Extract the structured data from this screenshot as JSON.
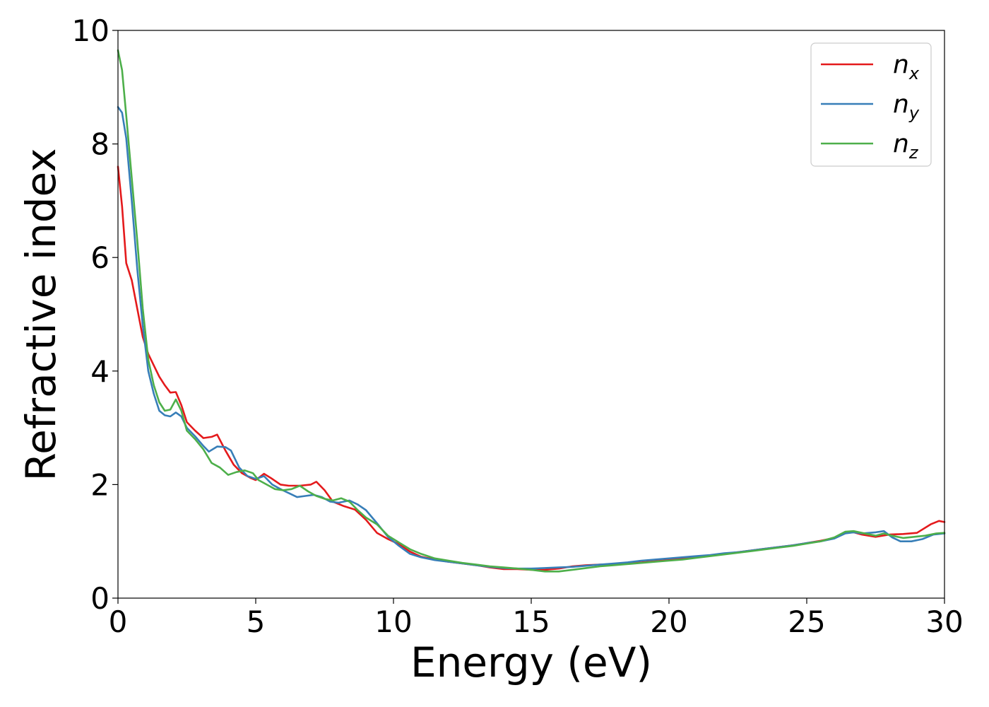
{
  "chart_data": {
    "type": "line",
    "xlabel": "Energy (eV)",
    "ylabel": "Refractive index",
    "xlim": [
      0,
      30
    ],
    "ylim": [
      0,
      10
    ],
    "xticks": [
      "0",
      "5",
      "10",
      "15",
      "20",
      "25",
      "30"
    ],
    "yticks": [
      "0",
      "2",
      "4",
      "6",
      "8",
      "10"
    ],
    "grid": false,
    "legend_position": "top-right",
    "series": [
      {
        "name": "n_x",
        "label_main": "n",
        "label_sub": "x",
        "color": "#e41a1c",
        "points": [
          [
            0,
            7.6
          ],
          [
            0.15,
            6.9
          ],
          [
            0.3,
            5.9
          ],
          [
            0.5,
            5.6
          ],
          [
            0.7,
            5.1
          ],
          [
            0.9,
            4.6
          ],
          [
            1.1,
            4.3
          ],
          [
            1.3,
            4.1
          ],
          [
            1.5,
            3.9
          ],
          [
            1.7,
            3.75
          ],
          [
            1.9,
            3.62
          ],
          [
            2.1,
            3.63
          ],
          [
            2.3,
            3.4
          ],
          [
            2.5,
            3.1
          ],
          [
            2.8,
            2.95
          ],
          [
            3.1,
            2.82
          ],
          [
            3.4,
            2.84
          ],
          [
            3.6,
            2.88
          ],
          [
            3.9,
            2.6
          ],
          [
            4.2,
            2.35
          ],
          [
            4.5,
            2.2
          ],
          [
            4.8,
            2.12
          ],
          [
            5.0,
            2.08
          ],
          [
            5.3,
            2.19
          ],
          [
            5.6,
            2.1
          ],
          [
            5.9,
            2.0
          ],
          [
            6.2,
            1.98
          ],
          [
            6.6,
            1.98
          ],
          [
            7.0,
            2.0
          ],
          [
            7.2,
            2.05
          ],
          [
            7.5,
            1.9
          ],
          [
            7.8,
            1.7
          ],
          [
            8.2,
            1.62
          ],
          [
            8.6,
            1.56
          ],
          [
            9.0,
            1.38
          ],
          [
            9.4,
            1.15
          ],
          [
            9.8,
            1.04
          ],
          [
            10.2,
            0.95
          ],
          [
            10.6,
            0.82
          ],
          [
            11.0,
            0.73
          ],
          [
            11.5,
            0.68
          ],
          [
            12.0,
            0.64
          ],
          [
            12.5,
            0.61
          ],
          [
            13.0,
            0.58
          ],
          [
            13.5,
            0.54
          ],
          [
            14.0,
            0.51
          ],
          [
            14.5,
            0.51
          ],
          [
            15.0,
            0.5
          ],
          [
            15.5,
            0.5
          ],
          [
            16.0,
            0.52
          ],
          [
            16.5,
            0.56
          ],
          [
            17.0,
            0.58
          ],
          [
            17.5,
            0.59
          ],
          [
            18.0,
            0.6
          ],
          [
            18.5,
            0.62
          ],
          [
            19.0,
            0.63
          ],
          [
            19.5,
            0.65
          ],
          [
            20.0,
            0.67
          ],
          [
            20.5,
            0.7
          ],
          [
            21.0,
            0.72
          ],
          [
            21.5,
            0.75
          ],
          [
            22.0,
            0.78
          ],
          [
            22.5,
            0.81
          ],
          [
            23.0,
            0.84
          ],
          [
            23.5,
            0.87
          ],
          [
            24.0,
            0.9
          ],
          [
            24.5,
            0.93
          ],
          [
            25.0,
            0.97
          ],
          [
            25.5,
            1.01
          ],
          [
            26.0,
            1.06
          ],
          [
            26.4,
            1.15
          ],
          [
            26.7,
            1.16
          ],
          [
            27.0,
            1.12
          ],
          [
            27.5,
            1.08
          ],
          [
            28.0,
            1.12
          ],
          [
            28.5,
            1.13
          ],
          [
            29.0,
            1.15
          ],
          [
            29.5,
            1.3
          ],
          [
            29.8,
            1.36
          ],
          [
            30.0,
            1.34
          ]
        ]
      },
      {
        "name": "n_y",
        "label_main": "n",
        "label_sub": "y",
        "color": "#377eb8",
        "points": [
          [
            0,
            8.65
          ],
          [
            0.15,
            8.55
          ],
          [
            0.3,
            8.1
          ],
          [
            0.5,
            7.0
          ],
          [
            0.7,
            5.8
          ],
          [
            0.9,
            4.8
          ],
          [
            1.1,
            4.0
          ],
          [
            1.3,
            3.6
          ],
          [
            1.5,
            3.3
          ],
          [
            1.7,
            3.22
          ],
          [
            1.9,
            3.2
          ],
          [
            2.1,
            3.27
          ],
          [
            2.3,
            3.2
          ],
          [
            2.5,
            3.0
          ],
          [
            2.8,
            2.85
          ],
          [
            3.1,
            2.68
          ],
          [
            3.3,
            2.58
          ],
          [
            3.6,
            2.67
          ],
          [
            3.9,
            2.66
          ],
          [
            4.1,
            2.6
          ],
          [
            4.4,
            2.3
          ],
          [
            4.7,
            2.15
          ],
          [
            5.0,
            2.1
          ],
          [
            5.3,
            2.15
          ],
          [
            5.6,
            2.0
          ],
          [
            5.9,
            1.92
          ],
          [
            6.2,
            1.85
          ],
          [
            6.5,
            1.78
          ],
          [
            6.8,
            1.8
          ],
          [
            7.1,
            1.82
          ],
          [
            7.4,
            1.78
          ],
          [
            7.7,
            1.7
          ],
          [
            8.0,
            1.68
          ],
          [
            8.4,
            1.72
          ],
          [
            8.7,
            1.65
          ],
          [
            9.0,
            1.55
          ],
          [
            9.4,
            1.32
          ],
          [
            9.8,
            1.08
          ],
          [
            10.2,
            0.92
          ],
          [
            10.6,
            0.78
          ],
          [
            11.0,
            0.72
          ],
          [
            11.5,
            0.67
          ],
          [
            12.0,
            0.64
          ],
          [
            12.5,
            0.61
          ],
          [
            13.0,
            0.58
          ],
          [
            13.5,
            0.55
          ],
          [
            14.0,
            0.53
          ],
          [
            14.5,
            0.52
          ],
          [
            15.0,
            0.52
          ],
          [
            15.5,
            0.53
          ],
          [
            16.0,
            0.54
          ],
          [
            16.5,
            0.55
          ],
          [
            17.0,
            0.57
          ],
          [
            17.5,
            0.59
          ],
          [
            18.0,
            0.61
          ],
          [
            18.5,
            0.63
          ],
          [
            19.0,
            0.66
          ],
          [
            19.5,
            0.68
          ],
          [
            20.0,
            0.7
          ],
          [
            20.5,
            0.72
          ],
          [
            21.0,
            0.74
          ],
          [
            21.5,
            0.76
          ],
          [
            22.0,
            0.79
          ],
          [
            22.5,
            0.81
          ],
          [
            23.0,
            0.84
          ],
          [
            23.5,
            0.87
          ],
          [
            24.0,
            0.9
          ],
          [
            24.5,
            0.93
          ],
          [
            25.0,
            0.97
          ],
          [
            25.5,
            1.0
          ],
          [
            26.0,
            1.05
          ],
          [
            26.4,
            1.14
          ],
          [
            26.7,
            1.16
          ],
          [
            27.0,
            1.14
          ],
          [
            27.5,
            1.16
          ],
          [
            27.8,
            1.18
          ],
          [
            28.1,
            1.07
          ],
          [
            28.4,
            1.0
          ],
          [
            28.8,
            1.0
          ],
          [
            29.2,
            1.04
          ],
          [
            29.6,
            1.12
          ],
          [
            30.0,
            1.14
          ]
        ]
      },
      {
        "name": "n_z",
        "label_main": "n",
        "label_sub": "z",
        "color": "#4daf4a",
        "points": [
          [
            0,
            9.65
          ],
          [
            0.15,
            9.3
          ],
          [
            0.3,
            8.5
          ],
          [
            0.5,
            7.4
          ],
          [
            0.7,
            6.3
          ],
          [
            0.9,
            5.1
          ],
          [
            1.1,
            4.2
          ],
          [
            1.3,
            3.75
          ],
          [
            1.5,
            3.45
          ],
          [
            1.7,
            3.3
          ],
          [
            1.9,
            3.32
          ],
          [
            2.1,
            3.5
          ],
          [
            2.3,
            3.3
          ],
          [
            2.5,
            2.95
          ],
          [
            2.8,
            2.8
          ],
          [
            3.1,
            2.62
          ],
          [
            3.4,
            2.38
          ],
          [
            3.7,
            2.3
          ],
          [
            4.0,
            2.17
          ],
          [
            4.3,
            2.22
          ],
          [
            4.6,
            2.25
          ],
          [
            4.9,
            2.2
          ],
          [
            5.1,
            2.08
          ],
          [
            5.4,
            2.0
          ],
          [
            5.7,
            1.92
          ],
          [
            6.0,
            1.9
          ],
          [
            6.3,
            1.92
          ],
          [
            6.6,
            1.98
          ],
          [
            6.9,
            1.88
          ],
          [
            7.2,
            1.8
          ],
          [
            7.5,
            1.75
          ],
          [
            7.8,
            1.72
          ],
          [
            8.1,
            1.76
          ],
          [
            8.4,
            1.7
          ],
          [
            8.7,
            1.55
          ],
          [
            9.0,
            1.42
          ],
          [
            9.4,
            1.3
          ],
          [
            9.8,
            1.1
          ],
          [
            10.2,
            0.98
          ],
          [
            10.6,
            0.86
          ],
          [
            11.0,
            0.78
          ],
          [
            11.5,
            0.7
          ],
          [
            12.0,
            0.66
          ],
          [
            12.5,
            0.62
          ],
          [
            13.0,
            0.59
          ],
          [
            13.5,
            0.56
          ],
          [
            14.0,
            0.54
          ],
          [
            14.5,
            0.52
          ],
          [
            15.0,
            0.5
          ],
          [
            15.5,
            0.47
          ],
          [
            16.0,
            0.47
          ],
          [
            16.5,
            0.5
          ],
          [
            17.0,
            0.53
          ],
          [
            17.5,
            0.56
          ],
          [
            18.0,
            0.58
          ],
          [
            18.5,
            0.6
          ],
          [
            19.0,
            0.62
          ],
          [
            19.5,
            0.64
          ],
          [
            20.0,
            0.66
          ],
          [
            20.5,
            0.68
          ],
          [
            21.0,
            0.71
          ],
          [
            21.5,
            0.74
          ],
          [
            22.0,
            0.77
          ],
          [
            22.5,
            0.8
          ],
          [
            23.0,
            0.83
          ],
          [
            23.5,
            0.86
          ],
          [
            24.0,
            0.89
          ],
          [
            24.5,
            0.92
          ],
          [
            25.0,
            0.96
          ],
          [
            25.5,
            1.0
          ],
          [
            26.0,
            1.07
          ],
          [
            26.4,
            1.17
          ],
          [
            26.7,
            1.18
          ],
          [
            27.0,
            1.15
          ],
          [
            27.5,
            1.1
          ],
          [
            27.8,
            1.14
          ],
          [
            28.1,
            1.1
          ],
          [
            28.5,
            1.06
          ],
          [
            28.9,
            1.08
          ],
          [
            29.3,
            1.1
          ],
          [
            29.7,
            1.14
          ],
          [
            30.0,
            1.15
          ]
        ]
      }
    ]
  }
}
